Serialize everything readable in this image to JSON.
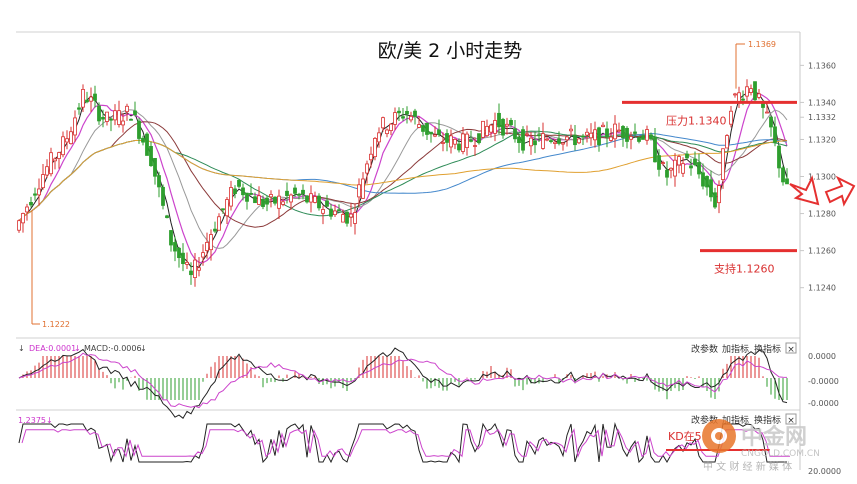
{
  "chart_data": {
    "type": "candlestick",
    "title": "欧/美 2 小时走势",
    "price_axis": {
      "ticks": [
        "1.1360",
        "1.1340",
        "1.1332",
        "1.1320",
        "1.1300",
        "1.1280",
        "1.1260",
        "1.1240"
      ],
      "tick_values": [
        1.136,
        1.134,
        1.1332,
        1.132,
        1.13,
        1.128,
        1.126,
        1.124
      ],
      "ylim": [
        1.1215,
        1.1378
      ]
    },
    "high_marker": "1.1369",
    "high_value": 1.1369,
    "low_marker": "1.1222",
    "low_value": 1.1222,
    "resistance": {
      "label": "压力1.1340",
      "value": 1.134
    },
    "support": {
      "label": "支持1.1260",
      "value": 1.126
    },
    "colors": {
      "up": "#d93030",
      "down": "#2e9e2e",
      "ma_black": "#222222",
      "ma_magenta": "#cc44cc",
      "ma_gray": "#999999",
      "ma_brown": "#8b3a3a",
      "ma_green": "#2e8b57",
      "ma_blue": "#4488cc",
      "ma_orange": "#e0a030",
      "level": "#e53030"
    },
    "macd": {
      "label_dea": "DEA:0.0001",
      "label_macd": "MACD:-0.0006",
      "ticks": [
        "0.0000",
        "-0.0000",
        "-0.0000"
      ]
    },
    "kd": {
      "label_value": "1.2375",
      "annotation": "KD在5",
      "tick_bottom": "20.0000"
    },
    "toolbar": {
      "edit_params": "改参数",
      "add_indicator": "加指标",
      "switch_indicator": "换指标",
      "close_glyph": "×"
    }
  },
  "watermark": {
    "brand": "中金网",
    "domain": "CNGOLD.COM.CN",
    "tagline": "中 文 财 经 新 媒 体"
  }
}
